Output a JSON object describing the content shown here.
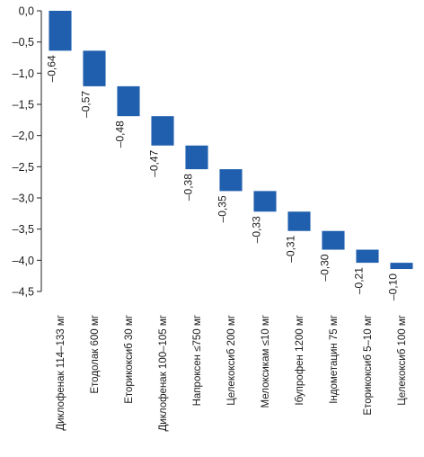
{
  "chart_data": {
    "type": "bar",
    "subtype": "waterfall",
    "title": "",
    "xlabel": "",
    "ylabel": "",
    "ylim": [
      -4.5,
      0
    ],
    "yticks": [
      0,
      -0.5,
      -1,
      -1.5,
      -2,
      -2.5,
      -3,
      -3.5,
      -4,
      -4.5
    ],
    "ytick_labels": [
      "0,0",
      "–0,5",
      "–1,0",
      "–1,5",
      "–2,0",
      "–2,5",
      "–3,0",
      "–3,5",
      "–4,0",
      "–4,5"
    ],
    "categories": [
      "Диклофенак 114–133 мг",
      "Етодолак 600 мг",
      "Еторикоксиб 30 мг",
      "Диклофенак 100–105 мг",
      "Напроксен ≤750 мг",
      "Целекоксиб 200 мг",
      "Мелоксикам ≤10 мг",
      "Ібупрофен 1200 мг",
      "Індометацин 75 мг",
      "Еторикоксиб 5–10 мг",
      "Целекоксиб 100 мг"
    ],
    "values": [
      -0.64,
      -0.57,
      -0.48,
      -0.47,
      -0.38,
      -0.35,
      -0.33,
      -0.31,
      -0.3,
      -0.21,
      -0.1
    ],
    "value_labels": [
      "–0,64",
      "–0,57",
      "–0,48",
      "–0,47",
      "–0,38",
      "–0,35",
      "–0,33",
      "–0,31",
      "–0,30",
      "–0,21",
      "–0,10"
    ],
    "bar_color": "#1f5fae",
    "grid": false,
    "legend": "none"
  }
}
